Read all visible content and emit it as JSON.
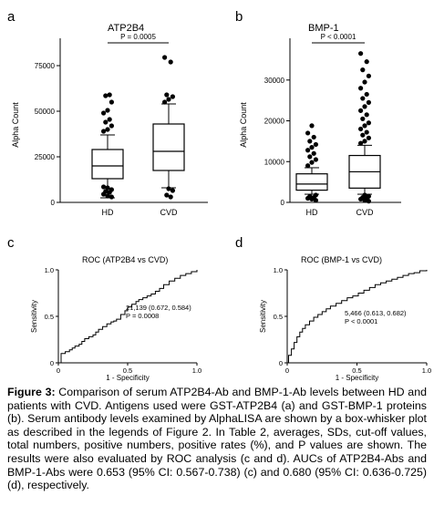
{
  "panels": {
    "a": "a",
    "b": "b",
    "c": "c",
    "d": "d"
  },
  "chart_data": [
    {
      "type": "box",
      "title": "ATP2B4",
      "ylabel": "Alpha Count",
      "ylim": [
        0,
        85000
      ],
      "yticks": [
        0,
        25000,
        50000,
        75000
      ],
      "ytick_labels": [
        "0",
        "25000",
        "50000",
        "75000"
      ],
      "categories": [
        "HD",
        "CVD"
      ],
      "annotation": "P = 0.0005",
      "boxes": [
        {
          "name": "HD",
          "whisker_low": 2500,
          "q1": 13000,
          "median": 20000,
          "q3": 29000,
          "whisker_high": 37000,
          "outliers_high": [
            39000,
            40000,
            42000,
            44000,
            45500,
            49000,
            50500,
            55000,
            58500,
            59000
          ],
          "outliers_low": [
            8500,
            8000,
            7000,
            6000,
            5500,
            4500,
            3500,
            3000
          ]
        },
        {
          "name": "CVD",
          "whisker_low": 8000,
          "q1": 17500,
          "median": 28000,
          "q3": 43000,
          "whisker_high": 54000,
          "outliers_high": [
            55000,
            56500,
            58000,
            59000,
            77000,
            79500
          ],
          "outliers_low": [
            7500,
            6500,
            4000,
            3000
          ]
        }
      ]
    },
    {
      "type": "box",
      "title": "BMP-1",
      "ylabel": "Alpha Count",
      "ylim": [
        0,
        38000
      ],
      "yticks": [
        0,
        10000,
        20000,
        30000
      ],
      "ytick_labels": [
        "0",
        "10000",
        "20000",
        "30000"
      ],
      "categories": [
        "HD",
        "CVD"
      ],
      "annotation": "P < 0.0001",
      "boxes": [
        {
          "name": "HD",
          "whisker_low": 2000,
          "q1": 3000,
          "median": 4500,
          "q3": 7000,
          "whisker_high": 8500,
          "outliers_high": [
            9000,
            9800,
            10500,
            11200,
            12000,
            12800,
            13500,
            14200,
            15000,
            16000,
            17000,
            18800
          ],
          "outliers_low": [
            1800,
            1500,
            1200,
            1000,
            800,
            500
          ]
        },
        {
          "name": "CVD",
          "whisker_low": 2000,
          "q1": 3500,
          "median": 7500,
          "q3": 11500,
          "whisker_high": 14000,
          "outliers_high": [
            14500,
            15000,
            15800,
            16500,
            17200,
            18000,
            18800,
            19500,
            20500,
            21500,
            22500,
            23500,
            24500,
            25500,
            26500,
            28000,
            29500,
            31000,
            32500,
            34500,
            36500
          ],
          "outliers_low": [
            1800,
            1500,
            1200,
            1000,
            800,
            500,
            300
          ]
        }
      ]
    },
    {
      "type": "line",
      "title": "ROC (ATP2B4 vs CVD)",
      "xlabel": "1 - Specificity",
      "ylabel": "Sensitivity",
      "xlim": [
        0,
        1.0
      ],
      "ylim": [
        0,
        1.0
      ],
      "xticks": [
        0,
        0.5,
        1.0
      ],
      "xtick_labels": [
        "0",
        "0.5",
        "1.0"
      ],
      "yticks": [
        0,
        0.5,
        1.0
      ],
      "ytick_labels": [
        "0",
        "0.5",
        "1.0"
      ],
      "annotation_lines": [
        "21,139 (0.672, 0.584)",
        "P = 0.0008"
      ],
      "x": [
        0,
        0.02,
        0.02,
        0.05,
        0.08,
        0.1,
        0.12,
        0.15,
        0.17,
        0.19,
        0.22,
        0.25,
        0.27,
        0.29,
        0.32,
        0.35,
        0.38,
        0.4,
        0.42,
        0.45,
        0.48,
        0.5,
        0.53,
        0.56,
        0.58,
        0.61,
        0.64,
        0.67,
        0.7,
        0.73,
        0.76,
        0.8,
        0.84,
        0.88,
        0.92,
        0.96,
        1.0
      ],
      "y": [
        0,
        0.02,
        0.1,
        0.12,
        0.14,
        0.16,
        0.18,
        0.2,
        0.23,
        0.26,
        0.28,
        0.3,
        0.33,
        0.36,
        0.39,
        0.42,
        0.44,
        0.45,
        0.47,
        0.52,
        0.56,
        0.6,
        0.63,
        0.66,
        0.68,
        0.7,
        0.72,
        0.74,
        0.77,
        0.8,
        0.84,
        0.88,
        0.91,
        0.94,
        0.96,
        0.98,
        1.0
      ]
    },
    {
      "type": "line",
      "title": "ROC (BMP-1 vs CVD)",
      "xlabel": "1 - Specificity",
      "ylabel": "Sensitivity",
      "xlim": [
        0,
        1.0
      ],
      "ylim": [
        0,
        1.0
      ],
      "xticks": [
        0,
        0.5,
        1.0
      ],
      "xtick_labels": [
        "0",
        "0.5",
        "1.0"
      ],
      "yticks": [
        0,
        0.5,
        1.0
      ],
      "ytick_labels": [
        "0",
        "0.5",
        "1.0"
      ],
      "annotation_lines": [
        "5,466 (0.613, 0.682)",
        "P < 0.0001"
      ],
      "x": [
        0,
        0.01,
        0.03,
        0.05,
        0.07,
        0.09,
        0.11,
        0.13,
        0.16,
        0.19,
        0.22,
        0.25,
        0.28,
        0.31,
        0.35,
        0.39,
        0.43,
        0.47,
        0.51,
        0.55,
        0.59,
        0.63,
        0.67,
        0.71,
        0.75,
        0.79,
        0.83,
        0.87,
        0.91,
        0.95,
        1.0
      ],
      "y": [
        0,
        0.08,
        0.15,
        0.22,
        0.28,
        0.33,
        0.37,
        0.41,
        0.45,
        0.49,
        0.52,
        0.55,
        0.58,
        0.61,
        0.64,
        0.67,
        0.7,
        0.72,
        0.75,
        0.78,
        0.81,
        0.84,
        0.86,
        0.88,
        0.9,
        0.92,
        0.94,
        0.96,
        0.97,
        0.99,
        1.0
      ]
    }
  ],
  "caption": {
    "label": "Figure 3:",
    "text": " Comparison of serum ATP2B4-Ab and BMP-1-Ab levels between HD and patients with CVD. Antigens used were GST-ATP2B4 (a) and GST-BMP-1 proteins (b). Serum antibody levels examined by AlphaLISA are shown by a box-whisker plot as described in the legends of Figure 2. In Table 2, averages, SDs, cut-off values, total numbers, positive numbers, positive rates (%), and P values are shown. The results were also evaluated by ROC analysis (c and d). AUCs of ATP2B4-Abs and BMP-1-Abs were 0.653 (95% CI: 0.567-0.738) (c) and 0.680 (95% CI: 0.636-0.725) (d), respectively."
  }
}
